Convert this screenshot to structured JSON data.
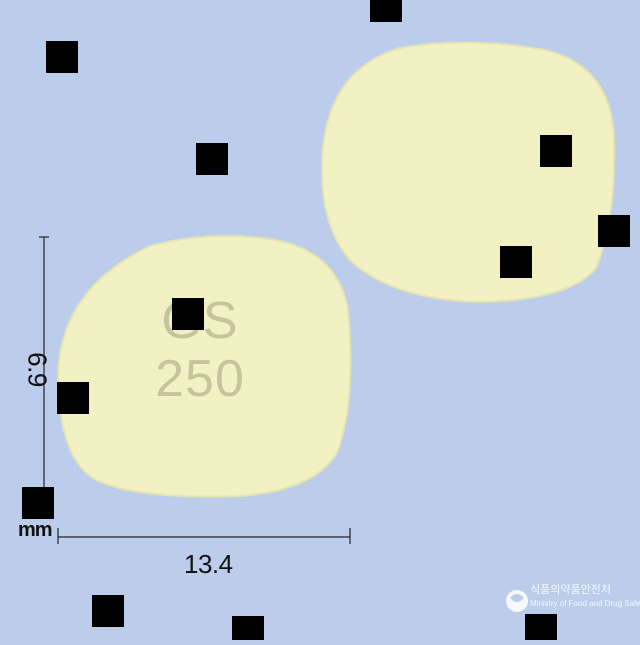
{
  "image": {
    "subject": "pill",
    "colors": {
      "background": "#bccdec",
      "pill": "#f1f0c0",
      "imprint": "#c6c39d"
    }
  },
  "pill": {
    "imprint_line1": "GS",
    "imprint_line2": "250"
  },
  "dimensions": {
    "width_label": "13.4",
    "height_label": "6.9",
    "unit": "mm"
  },
  "watermark": {
    "agency_korean": "식품의약품안전처",
    "agency_english": "Ministry of Food and Drug Safety"
  }
}
